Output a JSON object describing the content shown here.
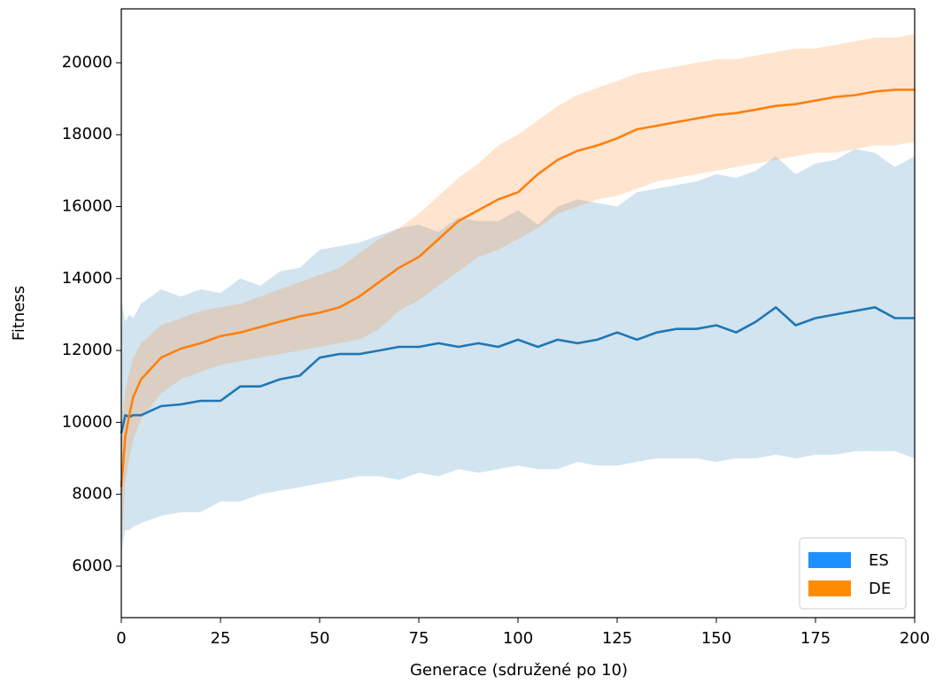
{
  "chart_data": {
    "type": "line",
    "xlabel": "Generace (sdružené po 10)",
    "ylabel": "Fitness",
    "x": [
      0,
      1,
      2,
      3,
      5,
      10,
      15,
      20,
      25,
      30,
      35,
      40,
      45,
      50,
      55,
      60,
      65,
      70,
      75,
      80,
      85,
      90,
      95,
      100,
      105,
      110,
      115,
      120,
      125,
      130,
      135,
      140,
      145,
      150,
      155,
      160,
      165,
      170,
      175,
      180,
      185,
      190,
      195,
      200
    ],
    "series": [
      {
        "name": "ES",
        "color": "#1f77b4",
        "legend_color": "#1e90ff",
        "values": [
          9700,
          10200,
          10150,
          10200,
          10200,
          10450,
          10500,
          10600,
          10600,
          11000,
          11000,
          11200,
          11300,
          11800,
          11900,
          11900,
          12000,
          12100,
          12100,
          12200,
          12100,
          12200,
          12100,
          12300,
          12100,
          12300,
          12200,
          12300,
          12500,
          12300,
          12500,
          12600,
          12600,
          12700,
          12500,
          12800,
          13200,
          12700,
          12900,
          13000,
          13100,
          13200,
          12900,
          12900
        ],
        "lower": [
          6400,
          7000,
          7000,
          7100,
          7200,
          7400,
          7500,
          7500,
          7800,
          7800,
          8000,
          8100,
          8200,
          8300,
          8400,
          8500,
          8500,
          8400,
          8600,
          8500,
          8700,
          8600,
          8700,
          8800,
          8700,
          8700,
          8900,
          8800,
          8800,
          8900,
          9000,
          9000,
          9000,
          8900,
          9000,
          9000,
          9100,
          9000,
          9100,
          9100,
          9200,
          9200,
          9200,
          9000
        ],
        "upper": [
          13400,
          12800,
          13000,
          12900,
          13300,
          13700,
          13500,
          13700,
          13600,
          14000,
          13800,
          14200,
          14300,
          14800,
          14900,
          15000,
          15200,
          15400,
          15500,
          15300,
          15700,
          15600,
          15600,
          15900,
          15500,
          16000,
          16200,
          16100,
          16000,
          16400,
          16500,
          16600,
          16700,
          16900,
          16800,
          17000,
          17400,
          16900,
          17200,
          17300,
          17600,
          17500,
          17100,
          17400
        ]
      },
      {
        "name": "DE",
        "color": "#ff7f0e",
        "legend_color": "#ff8c00",
        "values": [
          8200,
          9600,
          10200,
          10700,
          11200,
          11800,
          12050,
          12200,
          12400,
          12500,
          12650,
          12800,
          12950,
          13050,
          13200,
          13500,
          13900,
          14300,
          14600,
          15100,
          15600,
          15900,
          16200,
          16400,
          16900,
          17300,
          17550,
          17700,
          17900,
          18150,
          18250,
          18350,
          18450,
          18550,
          18600,
          18700,
          18800,
          18850,
          18950,
          19050,
          19100,
          19200,
          19250,
          19250
        ],
        "lower": [
          6500,
          8300,
          9000,
          9500,
          10100,
          10800,
          11200,
          11400,
          11600,
          11700,
          11800,
          11900,
          12000,
          12100,
          12200,
          12300,
          12600,
          13100,
          13400,
          13800,
          14200,
          14600,
          14800,
          15100,
          15400,
          15800,
          16000,
          16200,
          16300,
          16500,
          16700,
          16800,
          16900,
          17000,
          17100,
          17200,
          17300,
          17400,
          17500,
          17500,
          17600,
          17700,
          17700,
          17800
        ],
        "upper": [
          10000,
          10900,
          11400,
          11800,
          12200,
          12700,
          12900,
          13100,
          13200,
          13300,
          13500,
          13700,
          13900,
          14100,
          14300,
          14700,
          15100,
          15400,
          15800,
          16300,
          16800,
          17200,
          17700,
          18000,
          18400,
          18800,
          19100,
          19300,
          19500,
          19700,
          19800,
          19900,
          20000,
          20100,
          20100,
          20200,
          20300,
          20400,
          20400,
          20500,
          20600,
          20700,
          20700,
          20800
        ]
      }
    ],
    "band_opacity": 0.2,
    "xlim": [
      0,
      200
    ],
    "xticks": [
      0,
      25,
      50,
      75,
      100,
      125,
      150,
      175,
      200
    ],
    "ylim": [
      4570,
      21500
    ],
    "yticks": [
      6000,
      8000,
      10000,
      12000,
      14000,
      16000,
      18000,
      20000
    ],
    "legend": "lower right"
  }
}
